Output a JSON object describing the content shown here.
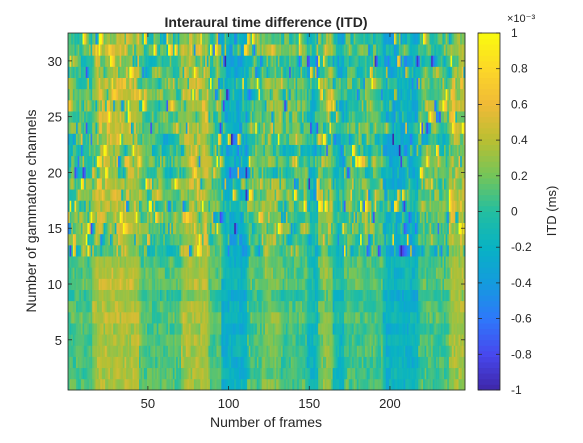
{
  "chart_data": {
    "type": "heatmap",
    "title": "Interaural time difference (ITD)",
    "xlabel": "Number of frames",
    "ylabel": "Number of gammatone channels",
    "xlim": [
      0.5,
      246.5
    ],
    "ylim": [
      0.5,
      32.5
    ],
    "x_ticks": [
      50,
      100,
      150,
      200
    ],
    "y_ticks": [
      5,
      10,
      15,
      20,
      25,
      30
    ],
    "x_tick_labels": [
      "50",
      "100",
      "150",
      "200"
    ],
    "y_tick_labels": [
      "5",
      "10",
      "15",
      "20",
      "25",
      "30"
    ],
    "n_frames": 246,
    "n_channels": 32,
    "colormap": "parula",
    "colorbar": {
      "label": "ITD (ms)",
      "exponent_label": "×10⁻³",
      "range": [
        -1,
        1
      ],
      "ticks": [
        -1,
        -0.8,
        -0.6,
        -0.4,
        -0.2,
        0,
        0.2,
        0.4,
        0.6,
        0.8,
        1
      ],
      "tick_labels": [
        "-1",
        "-0.8",
        "-0.6",
        "-0.4",
        "-0.2",
        "0",
        "0.2",
        "0.4",
        "0.6",
        "0.8",
        "1"
      ],
      "location": "right"
    },
    "grid": false,
    "pattern_note": "ITD values mostly near 0 (cyan/green), positive bands near frames 20-40, 75-85, 125, 160, 240; negative bands near frames 100-110, 150-170, 200-215; upper channels highly variable"
  }
}
